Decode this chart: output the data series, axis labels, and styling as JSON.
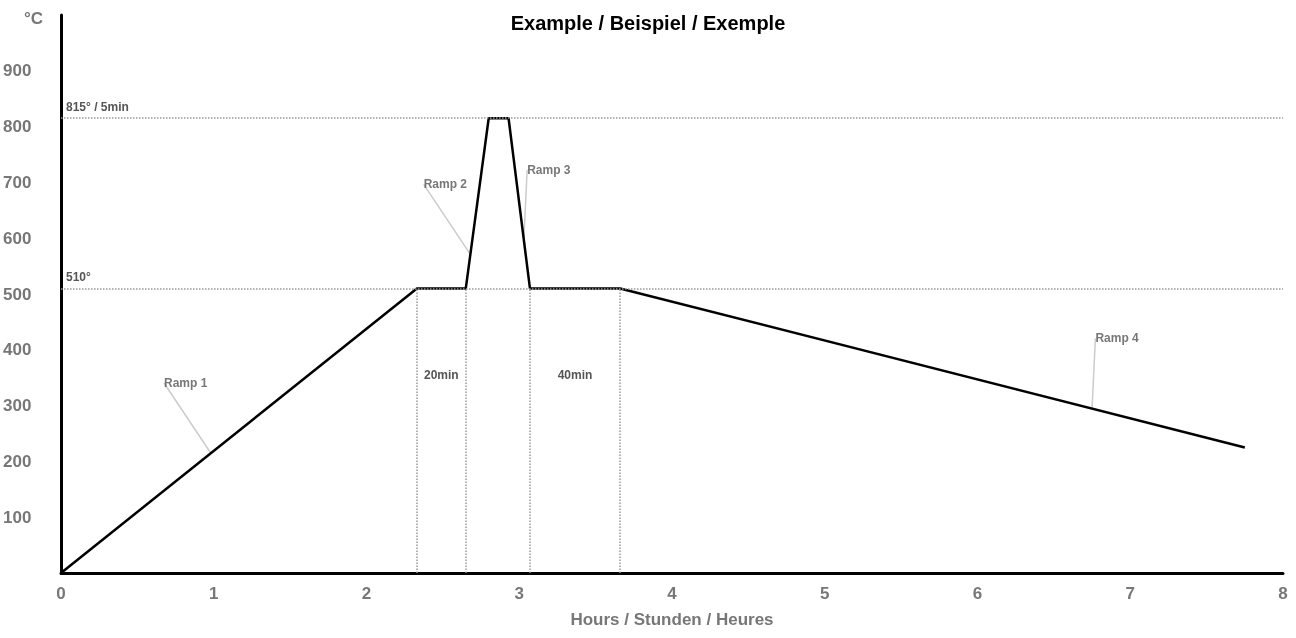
{
  "chart_data": {
    "type": "line",
    "title": "Example / Beispiel / Exemple",
    "xlabel": "Hours / Stunden / Heures",
    "ylabel": "°C",
    "x": [
      0,
      2.33,
      2.65,
      2.8,
      2.93,
      3.07,
      3.66,
      7.75
    ],
    "series": [
      {
        "color": "#000000",
        "values": [
          0,
          510,
          510,
          815,
          815,
          510,
          510,
          225
        ]
      }
    ],
    "xlim": [
      0,
      8
    ],
    "xticks": [
      0,
      1,
      2,
      3,
      4,
      5,
      6,
      7,
      8
    ],
    "ylim": [
      0,
      1000
    ],
    "yticks": [
      100,
      200,
      300,
      400,
      500,
      600,
      700,
      800,
      900
    ],
    "grid": false,
    "marker": "none",
    "line_style": "solid",
    "ref_lines": [
      {
        "axis": "y",
        "value": 510,
        "label": "510°",
        "color": "#999999",
        "line_style": "dotted"
      },
      {
        "axis": "y",
        "value": 815,
        "label": "815° / 5min",
        "color": "#999999",
        "line_style": "dotted"
      },
      {
        "axis": "x",
        "value": 2.33,
        "color": "#999999",
        "line_style": "dotted"
      },
      {
        "axis": "x",
        "value": 2.65,
        "color": "#999999",
        "line_style": "dotted"
      },
      {
        "axis": "x",
        "value": 3.07,
        "color": "#999999",
        "line_style": "dotted"
      },
      {
        "axis": "x",
        "value": 3.66,
        "color": "#999999",
        "line_style": "dotted"
      }
    ],
    "annotations": [
      "20min",
      "40min",
      {
        "text": "Ramp 1",
        "x": 0.98,
        "y": 215
      },
      {
        "text": "Ramp 2",
        "x": 2.68,
        "y": 571
      },
      {
        "text": "Ramp 3",
        "x": 3.03,
        "y": 597
      },
      {
        "text": "Ramp 4",
        "x": 6.75,
        "y": 295
      }
    ]
  }
}
